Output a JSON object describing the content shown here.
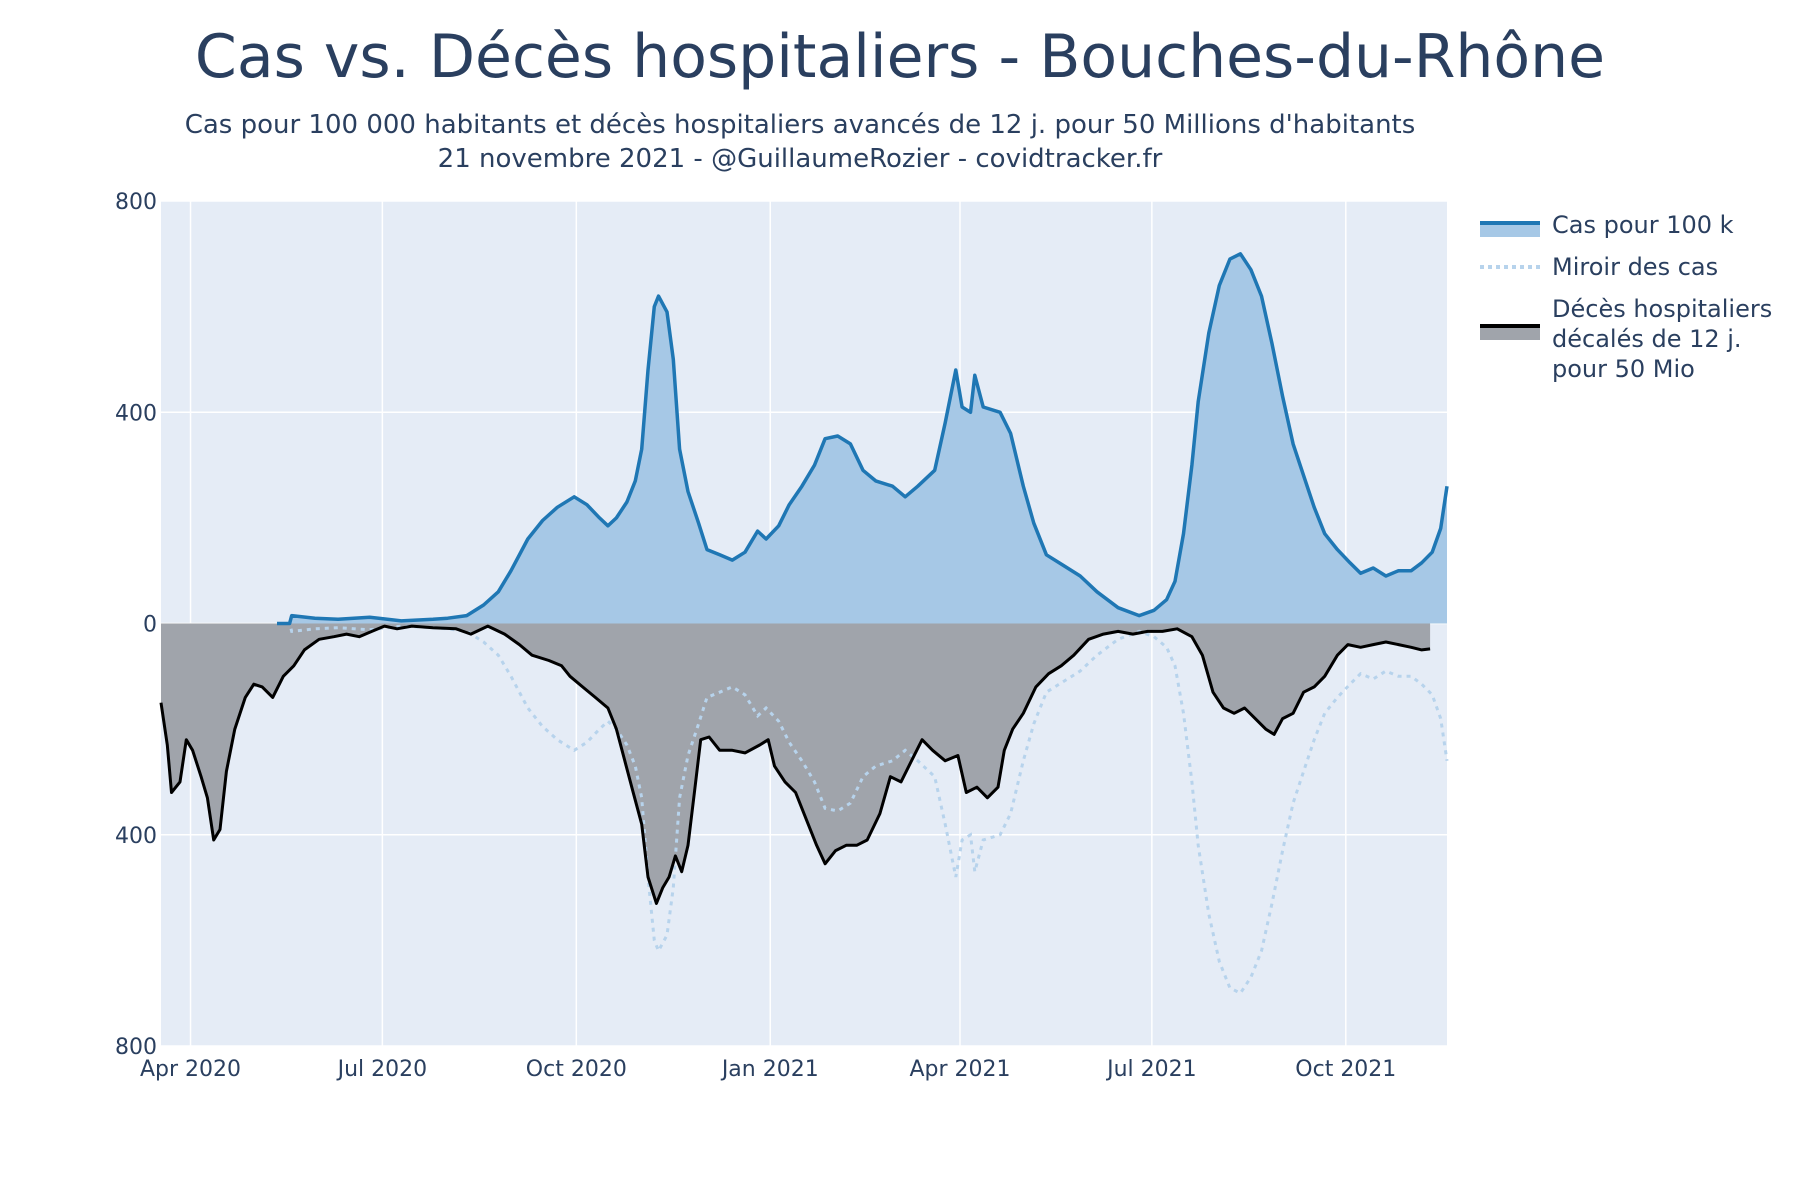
{
  "chart_data": {
    "type": "area",
    "title": "Cas vs. Décès hospitaliers - Bouches-du-Rhône",
    "subtitle": "Cas pour 100 000 habitants et décès hospitaliers avancés de 12 j. pour 50 Millions d'habitants",
    "caption": "21 novembre 2021 - @GuillaumeRozier - covidtracker.fr",
    "xlabel": "",
    "ylabel": "",
    "xlim": [
      "2020-03-18",
      "2021-11-18"
    ],
    "ylim": [
      -800,
      800
    ],
    "y_ticks": [
      {
        "value": 800,
        "label": "800"
      },
      {
        "value": 400,
        "label": "400"
      },
      {
        "value": 0,
        "label": "0"
      },
      {
        "value": -400,
        "label": "400"
      },
      {
        "value": -800,
        "label": "800"
      }
    ],
    "x_ticks": [
      {
        "date": "2020-04-01",
        "label": "Apr 2020"
      },
      {
        "date": "2020-07-01",
        "label": "Jul 2020"
      },
      {
        "date": "2020-10-01",
        "label": "Oct 2020"
      },
      {
        "date": "2021-01-01",
        "label": "Jan 2021"
      },
      {
        "date": "2021-04-01",
        "label": "Apr 2021"
      },
      {
        "date": "2021-07-01",
        "label": "Jul 2021"
      },
      {
        "date": "2021-10-01",
        "label": "Oct 2021"
      }
    ],
    "grid": true,
    "legend_position": "right",
    "colors": {
      "cases_line": "#1f77b4",
      "cases_fill": "#a6c8e6",
      "mirror": "#b7d3ec",
      "deaths_line": "#000000",
      "deaths_fill": "#a0a4ab",
      "plot_bg": "#e5ecf6",
      "grid": "#ffffff",
      "text": "#2a3f5f"
    },
    "series": [
      {
        "name": "Cas pour 100 k",
        "style": "line-filled",
        "points": [
          [
            "2020-05-12",
            0
          ],
          [
            "2020-05-18",
            0
          ],
          [
            "2020-05-19",
            15
          ],
          [
            "2020-05-30",
            10
          ],
          [
            "2020-06-10",
            8
          ],
          [
            "2020-06-25",
            12
          ],
          [
            "2020-07-10",
            5
          ],
          [
            "2020-07-25",
            8
          ],
          [
            "2020-08-01",
            10
          ],
          [
            "2020-08-10",
            15
          ],
          [
            "2020-08-18",
            35
          ],
          [
            "2020-08-25",
            60
          ],
          [
            "2020-08-31",
            100
          ],
          [
            "2020-09-08",
            160
          ],
          [
            "2020-09-15",
            195
          ],
          [
            "2020-09-22",
            220
          ],
          [
            "2020-09-30",
            240
          ],
          [
            "2020-10-06",
            225
          ],
          [
            "2020-10-12",
            200
          ],
          [
            "2020-10-16",
            185
          ],
          [
            "2020-10-20",
            200
          ],
          [
            "2020-10-25",
            230
          ],
          [
            "2020-10-29",
            270
          ],
          [
            "2020-11-01",
            330
          ],
          [
            "2020-11-04",
            480
          ],
          [
            "2020-11-07",
            600
          ],
          [
            "2020-11-09",
            620
          ],
          [
            "2020-11-13",
            590
          ],
          [
            "2020-11-16",
            500
          ],
          [
            "2020-11-19",
            330
          ],
          [
            "2020-11-23",
            250
          ],
          [
            "2020-11-28",
            190
          ],
          [
            "2020-12-02",
            140
          ],
          [
            "2020-12-08",
            130
          ],
          [
            "2020-12-14",
            120
          ],
          [
            "2020-12-20",
            135
          ],
          [
            "2020-12-26",
            175
          ],
          [
            "2020-12-30",
            160
          ],
          [
            "2021-01-05",
            185
          ],
          [
            "2021-01-10",
            225
          ],
          [
            "2021-01-16",
            260
          ],
          [
            "2021-01-22",
            300
          ],
          [
            "2021-01-27",
            350
          ],
          [
            "2021-02-02",
            355
          ],
          [
            "2021-02-08",
            340
          ],
          [
            "2021-02-14",
            290
          ],
          [
            "2021-02-20",
            270
          ],
          [
            "2021-02-28",
            260
          ],
          [
            "2021-03-06",
            240
          ],
          [
            "2021-03-12",
            260
          ],
          [
            "2021-03-20",
            290
          ],
          [
            "2021-03-25",
            380
          ],
          [
            "2021-03-30",
            480
          ],
          [
            "2021-04-02",
            410
          ],
          [
            "2021-04-06",
            400
          ],
          [
            "2021-04-08",
            470
          ],
          [
            "2021-04-12",
            410
          ],
          [
            "2021-04-20",
            400
          ],
          [
            "2021-04-25",
            360
          ],
          [
            "2021-05-01",
            260
          ],
          [
            "2021-05-06",
            190
          ],
          [
            "2021-05-12",
            130
          ],
          [
            "2021-05-20",
            110
          ],
          [
            "2021-05-28",
            90
          ],
          [
            "2021-06-05",
            60
          ],
          [
            "2021-06-15",
            30
          ],
          [
            "2021-06-25",
            15
          ],
          [
            "2021-07-02",
            25
          ],
          [
            "2021-07-08",
            45
          ],
          [
            "2021-07-12",
            80
          ],
          [
            "2021-07-16",
            170
          ],
          [
            "2021-07-20",
            300
          ],
          [
            "2021-07-23",
            420
          ],
          [
            "2021-07-28",
            550
          ],
          [
            "2021-08-02",
            640
          ],
          [
            "2021-08-07",
            690
          ],
          [
            "2021-08-12",
            700
          ],
          [
            "2021-08-17",
            670
          ],
          [
            "2021-08-22",
            620
          ],
          [
            "2021-08-27",
            530
          ],
          [
            "2021-09-01",
            430
          ],
          [
            "2021-09-06",
            340
          ],
          [
            "2021-09-11",
            280
          ],
          [
            "2021-09-16",
            220
          ],
          [
            "2021-09-21",
            170
          ],
          [
            "2021-09-27",
            140
          ],
          [
            "2021-10-03",
            115
          ],
          [
            "2021-10-08",
            95
          ],
          [
            "2021-10-14",
            105
          ],
          [
            "2021-10-20",
            90
          ],
          [
            "2021-10-26",
            100
          ],
          [
            "2021-11-01",
            100
          ],
          [
            "2021-11-06",
            115
          ],
          [
            "2021-11-11",
            135
          ],
          [
            "2021-11-15",
            180
          ],
          [
            "2021-11-18",
            260
          ]
        ]
      },
      {
        "name": "Miroir des cas",
        "style": "dotted",
        "mirror_of": 0
      },
      {
        "name": "Décès hospitaliers décalés de 12 j. pour 50 Mio",
        "style": "line-filled",
        "points": [
          [
            "2020-03-18",
            -150
          ],
          [
            "2020-03-21",
            -230
          ],
          [
            "2020-03-23",
            -320
          ],
          [
            "2020-03-27",
            -300
          ],
          [
            "2020-03-30",
            -220
          ],
          [
            "2020-04-02",
            -240
          ],
          [
            "2020-04-06",
            -290
          ],
          [
            "2020-04-09",
            -330
          ],
          [
            "2020-04-12",
            -410
          ],
          [
            "2020-04-15",
            -390
          ],
          [
            "2020-04-18",
            -280
          ],
          [
            "2020-04-22",
            -200
          ],
          [
            "2020-04-27",
            -140
          ],
          [
            "2020-05-01",
            -115
          ],
          [
            "2020-05-05",
            -120
          ],
          [
            "2020-05-10",
            -140
          ],
          [
            "2020-05-15",
            -100
          ],
          [
            "2020-05-20",
            -80
          ],
          [
            "2020-05-25",
            -50
          ],
          [
            "2020-06-01",
            -30
          ],
          [
            "2020-06-08",
            -25
          ],
          [
            "2020-06-14",
            -20
          ],
          [
            "2020-06-20",
            -25
          ],
          [
            "2020-06-26",
            -15
          ],
          [
            "2020-07-02",
            -5
          ],
          [
            "2020-07-08",
            -10
          ],
          [
            "2020-07-15",
            -5
          ],
          [
            "2020-07-25",
            -8
          ],
          [
            "2020-08-05",
            -10
          ],
          [
            "2020-08-12",
            -20
          ],
          [
            "2020-08-20",
            -5
          ],
          [
            "2020-08-28",
            -20
          ],
          [
            "2020-09-04",
            -40
          ],
          [
            "2020-09-10",
            -60
          ],
          [
            "2020-09-18",
            -70
          ],
          [
            "2020-09-24",
            -80
          ],
          [
            "2020-09-28",
            -100
          ],
          [
            "2020-10-04",
            -120
          ],
          [
            "2020-10-10",
            -140
          ],
          [
            "2020-10-16",
            -160
          ],
          [
            "2020-10-20",
            -200
          ],
          [
            "2020-10-24",
            -260
          ],
          [
            "2020-10-28",
            -320
          ],
          [
            "2020-11-01",
            -380
          ],
          [
            "2020-11-04",
            -480
          ],
          [
            "2020-11-08",
            -530
          ],
          [
            "2020-11-11",
            -500
          ],
          [
            "2020-11-14",
            -480
          ],
          [
            "2020-11-17",
            -440
          ],
          [
            "2020-11-20",
            -470
          ],
          [
            "2020-11-23",
            -420
          ],
          [
            "2020-11-26",
            -320
          ],
          [
            "2020-11-29",
            -220
          ],
          [
            "2020-12-03",
            -215
          ],
          [
            "2020-12-08",
            -240
          ],
          [
            "2020-12-14",
            -240
          ],
          [
            "2020-12-20",
            -245
          ],
          [
            "2020-12-27",
            -230
          ],
          [
            "2020-12-31",
            -220
          ],
          [
            "2021-01-03",
            -270
          ],
          [
            "2021-01-08",
            -300
          ],
          [
            "2021-01-13",
            -320
          ],
          [
            "2021-01-18",
            -370
          ],
          [
            "2021-01-23",
            -420
          ],
          [
            "2021-01-27",
            -455
          ],
          [
            "2021-02-01",
            -430
          ],
          [
            "2021-02-06",
            -420
          ],
          [
            "2021-02-11",
            -420
          ],
          [
            "2021-02-16",
            -410
          ],
          [
            "2021-02-22",
            -360
          ],
          [
            "2021-02-27",
            -290
          ],
          [
            "2021-03-04",
            -300
          ],
          [
            "2021-03-09",
            -260
          ],
          [
            "2021-03-14",
            -220
          ],
          [
            "2021-03-19",
            -240
          ],
          [
            "2021-03-25",
            -260
          ],
          [
            "2021-03-31",
            -250
          ],
          [
            "2021-04-04",
            -320
          ],
          [
            "2021-04-09",
            -310
          ],
          [
            "2021-04-14",
            -330
          ],
          [
            "2021-04-19",
            -310
          ],
          [
            "2021-04-22",
            -240
          ],
          [
            "2021-04-26",
            -200
          ],
          [
            "2021-05-01",
            -170
          ],
          [
            "2021-05-07",
            -120
          ],
          [
            "2021-05-13",
            -95
          ],
          [
            "2021-05-19",
            -80
          ],
          [
            "2021-05-25",
            -60
          ],
          [
            "2021-06-01",
            -30
          ],
          [
            "2021-06-08",
            -20
          ],
          [
            "2021-06-15",
            -15
          ],
          [
            "2021-06-22",
            -20
          ],
          [
            "2021-06-29",
            -15
          ],
          [
            "2021-07-06",
            -15
          ],
          [
            "2021-07-13",
            -10
          ],
          [
            "2021-07-20",
            -25
          ],
          [
            "2021-07-25",
            -60
          ],
          [
            "2021-07-30",
            -130
          ],
          [
            "2021-08-04",
            -160
          ],
          [
            "2021-08-09",
            -170
          ],
          [
            "2021-08-14",
            -160
          ],
          [
            "2021-08-19",
            -180
          ],
          [
            "2021-08-24",
            -200
          ],
          [
            "2021-08-28",
            -210
          ],
          [
            "2021-09-01",
            -180
          ],
          [
            "2021-09-06",
            -170
          ],
          [
            "2021-09-11",
            -130
          ],
          [
            "2021-09-16",
            -120
          ],
          [
            "2021-09-21",
            -100
          ],
          [
            "2021-09-27",
            -60
          ],
          [
            "2021-10-02",
            -40
          ],
          [
            "2021-10-08",
            -45
          ],
          [
            "2021-10-14",
            -40
          ],
          [
            "2021-10-20",
            -35
          ],
          [
            "2021-10-26",
            -40
          ],
          [
            "2021-11-01",
            -45
          ],
          [
            "2021-11-06",
            -50
          ],
          [
            "2021-11-10",
            -48
          ]
        ]
      }
    ]
  },
  "legend": {
    "items": [
      {
        "label": "Cas pour 100 k"
      },
      {
        "label": "Miroir des cas"
      },
      {
        "label": "Décès hospitaliers décalés de 12 j. pour 50 Mio"
      }
    ]
  }
}
